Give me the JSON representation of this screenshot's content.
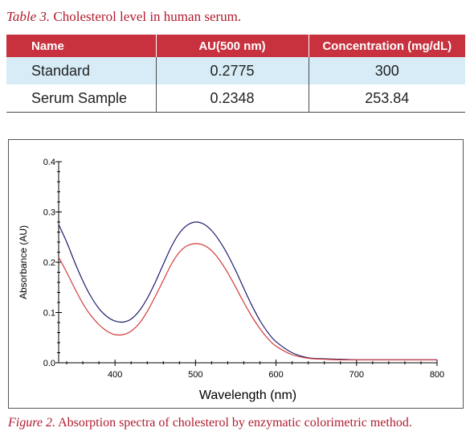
{
  "table": {
    "caption_label": "Table 3.",
    "caption_text": " Cholesterol level in human serum.",
    "columns": [
      "Name",
      "AU(500 nm)",
      "Concentration (mg/dL)"
    ],
    "rows": [
      [
        "Standard",
        "0.2775",
        "300"
      ],
      [
        "Serum Sample",
        "0.2348",
        "253.84"
      ]
    ],
    "colors": {
      "header_bg": "#c8323f",
      "row_alt": "#d7ecf6",
      "caption": "#b01c2e"
    }
  },
  "figure": {
    "caption_label": "Figure 2.",
    "caption_text": " Absorption spectra of cholesterol by enzymatic colorimetric method."
  },
  "chart_data": {
    "type": "line",
    "xlabel": "Wavelength (nm)",
    "ylabel": "Absorbance (AU)",
    "xlim": [
      330,
      800
    ],
    "ylim": [
      0.0,
      0.4
    ],
    "x_ticks": [
      "400",
      "500",
      "600",
      "700",
      "800"
    ],
    "y_ticks": [
      "0.0",
      "0.1",
      "0.2",
      "0.3",
      "0.4"
    ],
    "grid": false,
    "series": [
      {
        "color": "#1c1c6e",
        "x": [
          330,
          340,
          350,
          360,
          370,
          380,
          390,
          400,
          410,
          420,
          430,
          440,
          450,
          460,
          470,
          480,
          490,
          500,
          510,
          520,
          530,
          540,
          550,
          560,
          570,
          580,
          590,
          600,
          620,
          640,
          660,
          680,
          700,
          750,
          800
        ],
        "y": [
          0.275,
          0.24,
          0.2,
          0.163,
          0.132,
          0.108,
          0.092,
          0.083,
          0.081,
          0.087,
          0.103,
          0.128,
          0.16,
          0.196,
          0.231,
          0.258,
          0.274,
          0.28,
          0.276,
          0.263,
          0.242,
          0.215,
          0.183,
          0.148,
          0.114,
          0.084,
          0.06,
          0.042,
          0.02,
          0.01,
          0.008,
          0.007,
          0.006,
          0.006,
          0.006
        ]
      },
      {
        "color": "#d23a3a",
        "x": [
          330,
          340,
          350,
          360,
          370,
          380,
          390,
          400,
          410,
          420,
          430,
          440,
          450,
          460,
          470,
          480,
          490,
          500,
          510,
          520,
          530,
          540,
          550,
          560,
          570,
          580,
          590,
          600,
          620,
          640,
          660,
          680,
          700,
          750,
          800
        ],
        "y": [
          0.21,
          0.18,
          0.148,
          0.118,
          0.094,
          0.076,
          0.063,
          0.056,
          0.056,
          0.063,
          0.078,
          0.102,
          0.132,
          0.164,
          0.196,
          0.22,
          0.233,
          0.237,
          0.234,
          0.223,
          0.204,
          0.179,
          0.15,
          0.12,
          0.092,
          0.068,
          0.048,
          0.033,
          0.016,
          0.009,
          0.007,
          0.006,
          0.006,
          0.006,
          0.006
        ]
      }
    ]
  }
}
